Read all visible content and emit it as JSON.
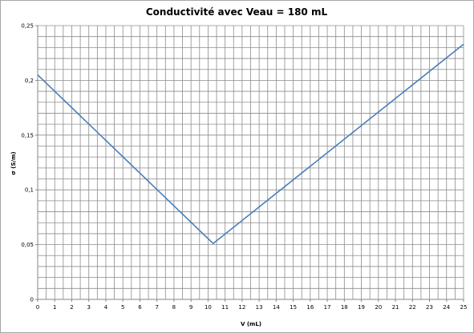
{
  "chart_data": {
    "type": "line",
    "title": "Conductivité avec Veau = 180 mL",
    "xlabel": "V (mL)",
    "ylabel": "σ (S/m)",
    "xlim": [
      0,
      25
    ],
    "ylim": [
      0,
      0.25
    ],
    "x_ticks": [
      "0",
      "1",
      "2",
      "3",
      "4",
      "5",
      "6",
      "7",
      "8",
      "9",
      "10",
      "11",
      "12",
      "13",
      "14",
      "15",
      "16",
      "17",
      "18",
      "19",
      "20",
      "21",
      "22",
      "23",
      "24",
      "25"
    ],
    "y_ticks": [
      {
        "value": 0,
        "label": "0"
      },
      {
        "value": 0.05,
        "label": "0,05"
      },
      {
        "value": 0.1,
        "label": "0,1"
      },
      {
        "value": 0.15,
        "label": "0,15"
      },
      {
        "value": 0.2,
        "label": "0,2"
      },
      {
        "value": 0.25,
        "label": "0,25"
      }
    ],
    "grid": true,
    "legend": false,
    "series": [
      {
        "color": "#4a7ebb",
        "x": [
          0,
          10.3,
          25
        ],
        "y": [
          0.205,
          0.051,
          0.233
        ]
      }
    ]
  }
}
